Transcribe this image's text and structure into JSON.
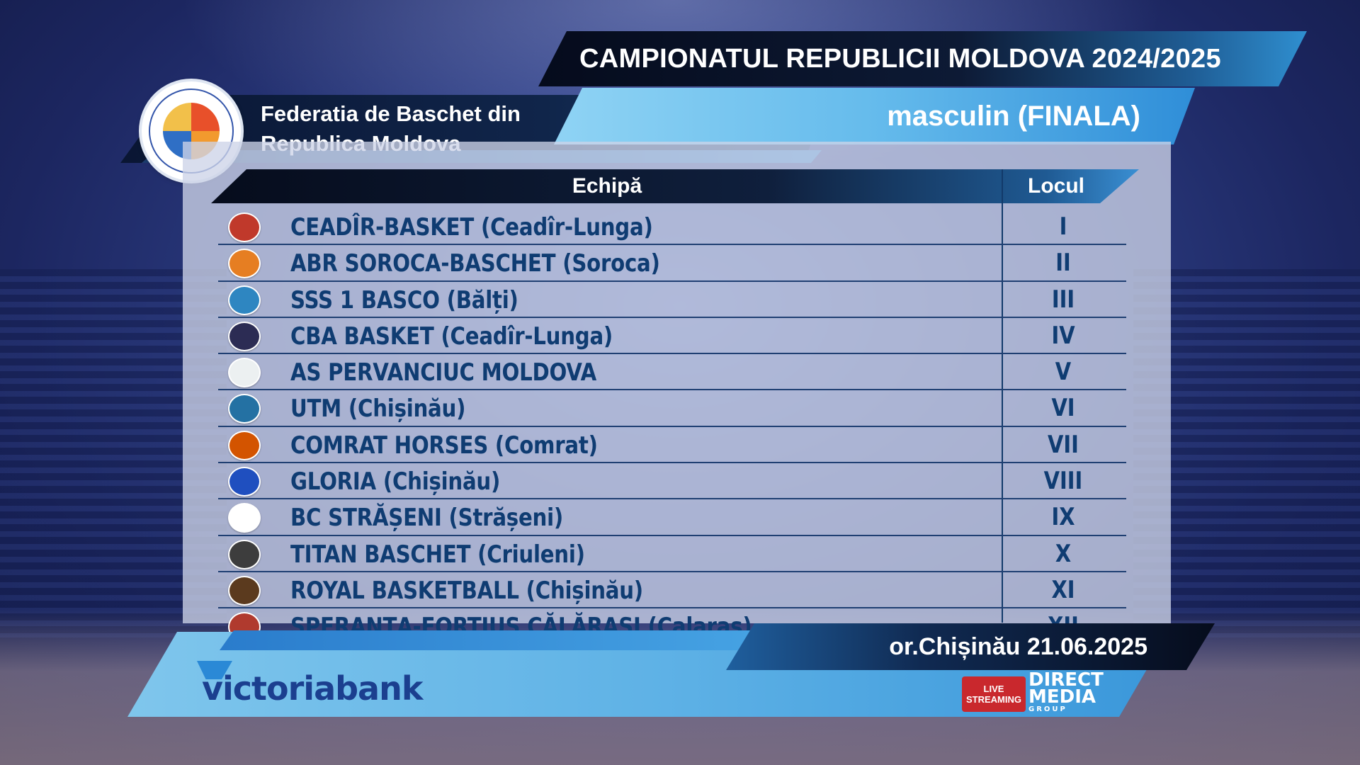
{
  "header": {
    "title": "CAMPIONATUL REPUBLICII MOLDOVA 2024/2025",
    "federation_line1": "Federatia de Baschet din",
    "federation_line2": "Republica Moldova",
    "category": "masculin (FINALA)"
  },
  "table": {
    "col_team": "Echipă",
    "col_place": "Locul",
    "rows": [
      {
        "team": "CEADÎR-BASKET (Ceadîr-Lunga)",
        "place": "I",
        "icon": "ceadir-basket-logo-icon",
        "color": "#c0392b"
      },
      {
        "team": "ABR SOROCA-BASCHET (Soroca)",
        "place": "II",
        "icon": "abr-soroca-logo-icon",
        "color": "#e67e22"
      },
      {
        "team": "SSS 1 BASCO (Bălți)",
        "place": "III",
        "icon": "sss1-basco-logo-icon",
        "color": "#2e86c1"
      },
      {
        "team": "CBA BASKET (Ceadîr-Lunga)",
        "place": "IV",
        "icon": "cba-basket-logo-icon",
        "color": "#2c2c54"
      },
      {
        "team": "AS PERVANCIUC MOLDOVA",
        "place": "V",
        "icon": "as-pervanciuc-logo-icon",
        "color": "#ecf0f1"
      },
      {
        "team": "UTM (Chișinău)",
        "place": "VI",
        "icon": "utm-logo-icon",
        "color": "#2471a3"
      },
      {
        "team": "COMRAT HORSES (Comrat)",
        "place": "VII",
        "icon": "comrat-horses-logo-icon",
        "color": "#d35400"
      },
      {
        "team": "GLORIA (Chișinău)",
        "place": "VIII",
        "icon": "gloria-logo-icon",
        "color": "#1f4fbf"
      },
      {
        "team": "BC STRĂȘENI (Strășeni)",
        "place": "IX",
        "icon": "bc-straseni-logo-icon",
        "color": "#ffffff"
      },
      {
        "team": "TITAN BASCHET (Criuleni)",
        "place": "X",
        "icon": "titan-baschet-logo-icon",
        "color": "#3d3d3d"
      },
      {
        "team": "ROYAL BASKETBALL (Chișinău)",
        "place": "XI",
        "icon": "royal-basketball-logo-icon",
        "color": "#5b3a1e"
      },
      {
        "team": "SPERANȚA-FORTIUS CĂLĂRAȘI (Calaraș)",
        "place": "XII",
        "icon": "speranta-fortius-logo-icon",
        "color": "#b03a2e"
      }
    ]
  },
  "footer": {
    "date": "or.Chișinău 21.06.2025",
    "sponsor": "victoriabank",
    "live_line1": "LIVE",
    "live_line2": "STREAMING",
    "media_line1": "DIRECT",
    "media_line2": "MEDIA",
    "media_line3": "GROUP"
  },
  "colors": {
    "accent": "#3a8fd3",
    "text_dark": "#0f3c72",
    "panel": "#cdd4e8"
  }
}
